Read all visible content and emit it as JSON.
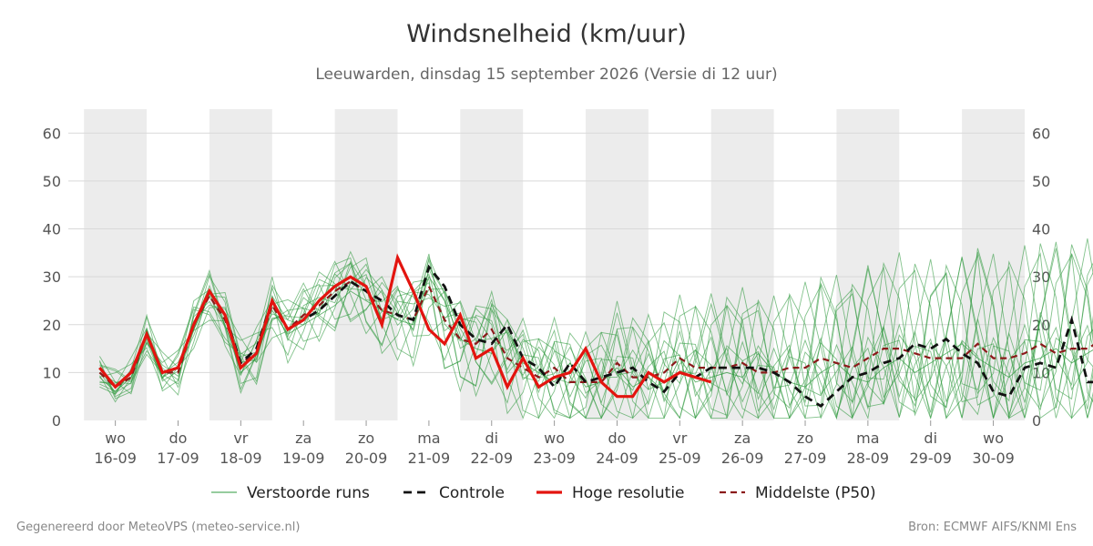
{
  "title": "Windsnelheid (km/uur)",
  "subtitle": "Leeuwarden, dinsdag 15 september 2026 (Versie di 12 uur)",
  "footer_left": "Gegenereerd door MeteoVPS (meteo-service.nl)",
  "footer_right": "Bron: ECMWF AIFS/KNMI Ens",
  "colors": {
    "ensemble": "#2e9a3e",
    "control": "#111111",
    "hires": "#e3140f",
    "median": "#8b1a1a",
    "band": "#ececec",
    "grid": "#d9d9d9"
  },
  "chart_data": {
    "type": "line",
    "title": "Windsnelheid (km/uur)",
    "ylim": [
      0,
      65
    ],
    "yticks": [
      0,
      10,
      20,
      30,
      40,
      50,
      60
    ],
    "grid": true,
    "legend_position": "bottom",
    "x_unit": "days since 16-09 00:00 (step 0.25 = 6 h)",
    "x_range": [
      -0.75,
      14.5
    ],
    "shaded_days": [
      0,
      2,
      4,
      6,
      8,
      10,
      12,
      14
    ],
    "day_labels": [
      {
        "day": "wo",
        "date": "16-09"
      },
      {
        "day": "do",
        "date": "17-09"
      },
      {
        "day": "vr",
        "date": "18-09"
      },
      {
        "day": "za",
        "date": "19-09"
      },
      {
        "day": "zo",
        "date": "20-09"
      },
      {
        "day": "ma",
        "date": "21-09"
      },
      {
        "day": "di",
        "date": "22-09"
      },
      {
        "day": "wo",
        "date": "23-09"
      },
      {
        "day": "do",
        "date": "24-09"
      },
      {
        "day": "vr",
        "date": "25-09"
      },
      {
        "day": "za",
        "date": "26-09"
      },
      {
        "day": "zo",
        "date": "27-09"
      },
      {
        "day": "ma",
        "date": "28-09"
      },
      {
        "day": "di",
        "date": "29-09"
      },
      {
        "day": "wo",
        "date": "30-09"
      }
    ],
    "x_start": -0.25,
    "x_step": 0.25,
    "series": [
      {
        "name": "Controle",
        "style": "dashed",
        "values": [
          11,
          7,
          10,
          18,
          10,
          11,
          20,
          27,
          22,
          12,
          15,
          25,
          19,
          21,
          23,
          26,
          29,
          27,
          25,
          22,
          21,
          32,
          28,
          20,
          17,
          16,
          20,
          13,
          11,
          7,
          12,
          8,
          9,
          10,
          11,
          8,
          6,
          10,
          9,
          11,
          11,
          11,
          11,
          10,
          8,
          5,
          3,
          6,
          9,
          10,
          12,
          13,
          16,
          15,
          17,
          14,
          12,
          6,
          5,
          11,
          12,
          11,
          21,
          8,
          8,
          15
        ]
      },
      {
        "name": "Hoge resolutie",
        "style": "solid",
        "values": [
          11,
          7,
          10,
          18,
          10,
          11,
          20,
          27,
          22,
          11,
          14,
          25,
          19,
          21,
          25,
          28,
          30,
          28,
          20,
          34,
          27,
          19,
          16,
          22,
          13,
          15,
          7,
          13,
          7,
          9,
          10,
          15,
          8,
          5,
          5,
          10,
          8,
          10,
          9,
          8
        ]
      },
      {
        "name": "Middelste (P50)",
        "style": "dashed",
        "values": [
          10,
          7,
          9,
          18,
          10,
          10,
          20,
          26,
          21,
          12,
          14,
          24,
          19,
          22,
          24,
          27,
          29,
          27,
          23,
          22,
          21,
          28,
          21,
          17,
          16,
          19,
          13,
          11,
          9,
          11,
          8,
          8,
          8,
          12,
          9,
          9,
          10,
          13,
          11,
          11,
          11,
          12,
          10,
          10,
          11,
          11,
          13,
          12,
          11,
          13,
          15,
          15,
          14,
          13,
          13,
          13,
          16,
          13,
          13,
          14,
          16,
          14,
          15,
          15,
          17
        ]
      },
      {
        "name": "Verstoorde runs",
        "style": "thin",
        "members": [
          [
            9,
            6,
            9,
            17,
            9,
            11,
            19,
            26,
            20,
            10,
            13,
            23,
            18,
            20,
            22,
            24,
            27,
            25,
            23,
            21,
            20,
            30,
            25,
            17,
            15,
            14,
            19,
            12,
            10,
            8,
            12,
            7,
            8,
            11,
            7,
            9,
            6,
            13,
            8,
            9,
            10,
            9,
            14,
            10,
            8,
            7,
            10,
            12,
            9,
            8,
            11,
            13,
            10,
            12,
            14,
            16,
            13,
            11,
            9,
            12,
            13,
            15,
            12,
            14,
            16
          ]
        ]
      }
    ],
    "legend": [
      "Verstoorde runs",
      "Controle",
      "Hoge resolutie",
      "Middelste (P50)"
    ]
  }
}
